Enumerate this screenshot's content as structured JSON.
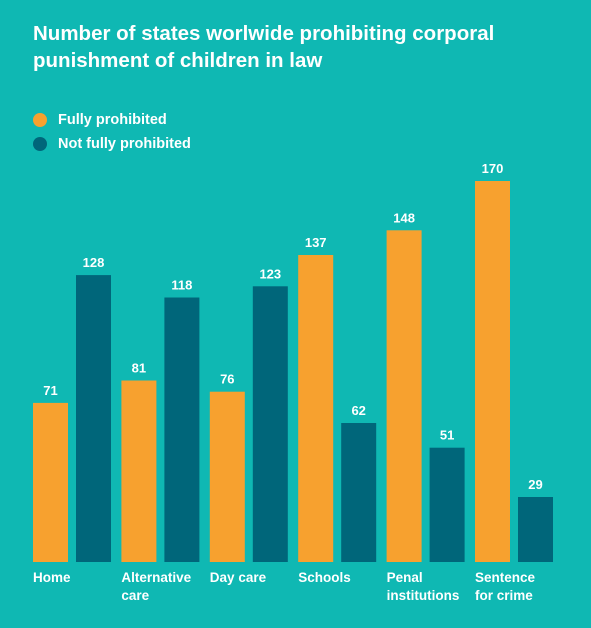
{
  "chart_data": {
    "type": "bar",
    "title": "Number of states worlwide prohibiting corporal punishment of children in law",
    "categories": [
      "Home",
      "Alternative care",
      "Day care",
      "Schools",
      "Penal institutions",
      "Sentence for crime"
    ],
    "category_lines": [
      [
        "Home"
      ],
      [
        "Alternative",
        "care"
      ],
      [
        "Day care"
      ],
      [
        "Schools"
      ],
      [
        "Penal",
        "institutions"
      ],
      [
        "Sentence",
        "for crime"
      ]
    ],
    "series": [
      {
        "name": "Fully prohibited",
        "color": "#f7a12f",
        "values": [
          71,
          81,
          76,
          137,
          148,
          170
        ]
      },
      {
        "name": "Not fully prohibited",
        "color": "#00667a",
        "values": [
          128,
          118,
          123,
          62,
          51,
          29
        ]
      }
    ],
    "ylim": [
      0,
      170
    ],
    "grid": false,
    "legend_position": "top-left",
    "xlabel": "",
    "ylabel": ""
  }
}
